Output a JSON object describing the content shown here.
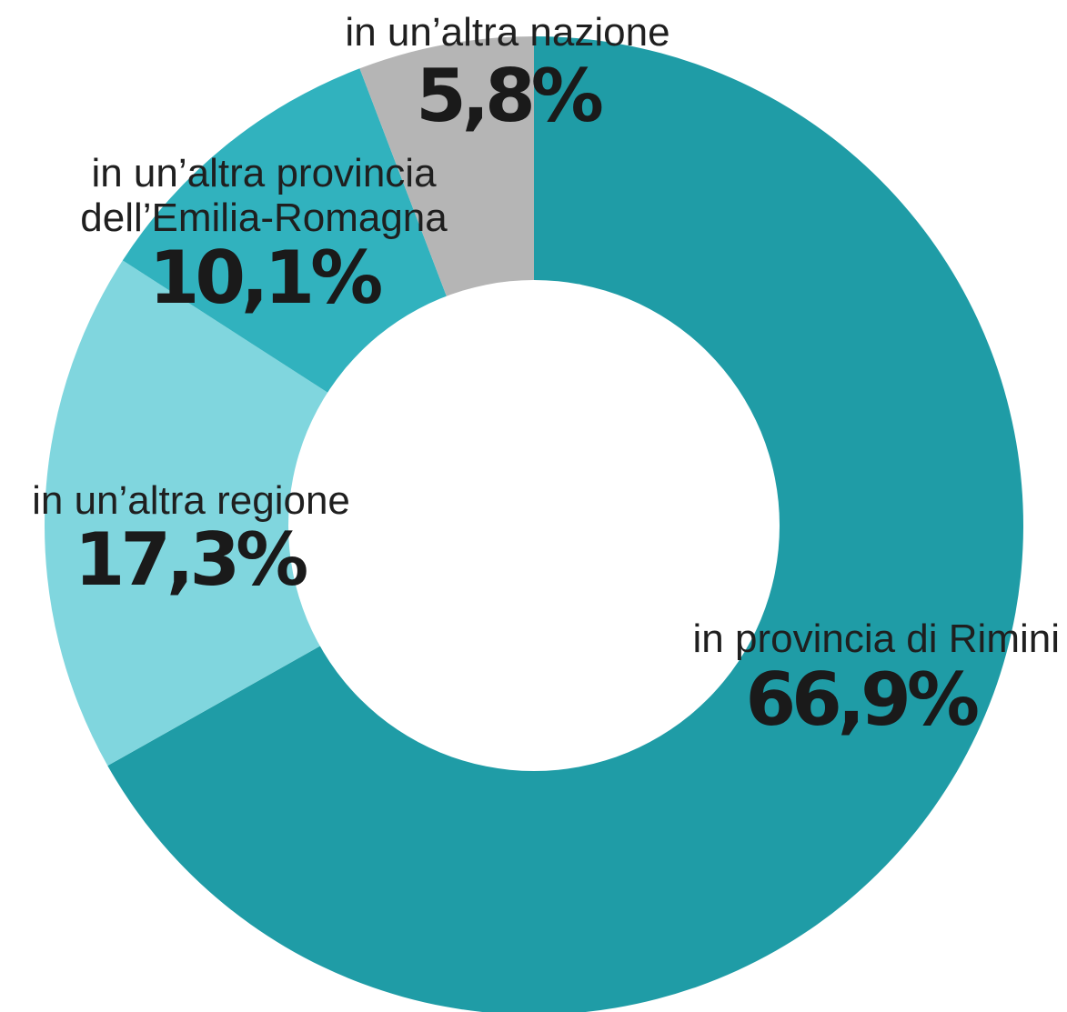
{
  "chart_data": {
    "type": "pie",
    "variant": "donut",
    "slices": [
      {
        "label": "in provincia di Rimini",
        "value": 66.9,
        "value_label": "66,9%",
        "color": "#1f9ca6"
      },
      {
        "label": "in un’altra regione",
        "value": 17.3,
        "value_label": "17,3%",
        "color": "#80d6de"
      },
      {
        "label_lines": [
          "in un’altra provincia",
          "dell’Emilia-Romagna"
        ],
        "value": 10.1,
        "value_label": "10,1%",
        "color": "#31b2be"
      },
      {
        "label": "in un’altra nazione",
        "value": 5.8,
        "value_label": "5,8%",
        "color": "#b5b5b5"
      }
    ]
  }
}
